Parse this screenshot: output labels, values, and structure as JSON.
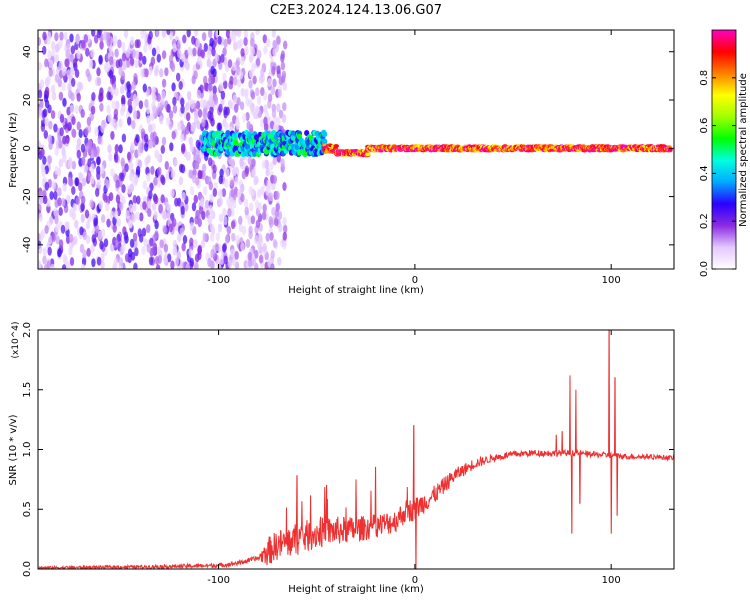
{
  "figure_title": "C2E3.2024.124.13.06.G07",
  "chart_data": [
    {
      "type": "heatmap",
      "xlabel": "Height of straight line (km)",
      "ylabel": "Frequency (Hz)",
      "xlim": [
        -192,
        132
      ],
      "ylim": [
        -50,
        49
      ],
      "x_ticks": [
        -100,
        0,
        100
      ],
      "x_tick_labels": [
        "-100",
        "0",
        "100"
      ],
      "y_ticks": [
        -40,
        -20,
        0,
        20,
        40
      ],
      "y_tick_labels": [
        "-40",
        "-20",
        "0",
        "20",
        "40"
      ],
      "colorbar": {
        "label": "Normalized spectral amplitude",
        "range": [
          0,
          1
        ],
        "ticks": [
          0.0,
          0.2,
          0.4,
          0.6,
          0.8
        ],
        "tick_labels": [
          "0.0",
          "0.2",
          "0.4",
          "0.6",
          "0.8"
        ],
        "colormap": [
          "#ffffff",
          "#e4c8ff",
          "#8a2be2",
          "#2a00ff",
          "#00aaff",
          "#00ffe0",
          "#00ff00",
          "#a0ff00",
          "#ffff00",
          "#ff8000",
          "#ff0000",
          "#ff00c0"
        ]
      },
      "noise_region_x": [
        -192,
        -66
      ],
      "ridge_segments": [
        {
          "x": [
            -108,
            -46
          ],
          "freq": 2,
          "spread": 9
        },
        {
          "x": [
            -46,
            -40
          ],
          "freq": 0,
          "spread": 3
        },
        {
          "x": [
            -40,
            -24
          ],
          "freq": -2,
          "spread": 2
        },
        {
          "x": [
            -24,
            130
          ],
          "freq": 0,
          "spread": 2
        }
      ],
      "grid": false
    },
    {
      "type": "line",
      "xlabel": "Height of straight line (km)",
      "ylabel": "SNR (10 * v/v)",
      "y_multiplier": "(x10^4)",
      "xlim": [
        -192,
        132
      ],
      "ylim": [
        0,
        2.0
      ],
      "x_ticks": [
        -100,
        0,
        100
      ],
      "x_tick_labels": [
        "-100",
        "0",
        "100"
      ],
      "y_ticks": [
        0,
        0.5,
        1.0,
        1.5,
        2.0
      ],
      "y_tick_labels": [
        "0.0",
        "0.5",
        "1.0",
        "1.5",
        "2.0"
      ],
      "color": "#ee3030",
      "grid": false,
      "baseline": [
        [
          -192,
          0.01
        ],
        [
          -130,
          0.02
        ],
        [
          -100,
          0.03
        ],
        [
          -90,
          0.05
        ],
        [
          -80,
          0.09
        ],
        [
          -70,
          0.2
        ],
        [
          -60,
          0.25
        ],
        [
          -50,
          0.3
        ],
        [
          -40,
          0.32
        ],
        [
          -30,
          0.33
        ],
        [
          -20,
          0.36
        ],
        [
          -10,
          0.4
        ],
        [
          -5,
          0.48
        ],
        [
          0,
          0.5
        ],
        [
          5,
          0.56
        ],
        [
          10,
          0.62
        ],
        [
          20,
          0.78
        ],
        [
          30,
          0.88
        ],
        [
          40,
          0.93
        ],
        [
          50,
          0.96
        ],
        [
          60,
          0.97
        ],
        [
          70,
          0.97
        ],
        [
          80,
          0.97
        ],
        [
          90,
          0.96
        ],
        [
          100,
          0.95
        ],
        [
          110,
          0.94
        ],
        [
          120,
          0.94
        ],
        [
          132,
          0.93
        ]
      ],
      "noise_amplitude": [
        [
          -192,
          0.01
        ],
        [
          -80,
          0.02
        ],
        [
          -75,
          0.12
        ],
        [
          -60,
          0.14
        ],
        [
          -40,
          0.12
        ],
        [
          -20,
          0.1
        ],
        [
          0,
          0.1
        ],
        [
          20,
          0.06
        ],
        [
          40,
          0.03
        ],
        [
          132,
          0.02
        ]
      ],
      "features": [
        {
          "x": -0.5,
          "y": 1.2
        },
        {
          "x": 0.5,
          "y": 0.0
        },
        {
          "x": -20,
          "y": 0.85
        },
        {
          "x": -45,
          "y": 0.7
        },
        {
          "x": -60,
          "y": 0.78
        },
        {
          "x": -30,
          "y": 0.75
        },
        {
          "x": 79,
          "y": 1.62
        },
        {
          "x": 80,
          "y": 0.3
        },
        {
          "x": 82,
          "y": 1.5
        },
        {
          "x": 84,
          "y": 0.55
        },
        {
          "x": 99,
          "y": 2.0
        },
        {
          "x": 100,
          "y": 0.3
        },
        {
          "x": 102,
          "y": 1.6
        },
        {
          "x": 103,
          "y": 0.45
        },
        {
          "x": 72,
          "y": 1.12
        },
        {
          "x": 75,
          "y": 1.15
        }
      ]
    }
  ]
}
